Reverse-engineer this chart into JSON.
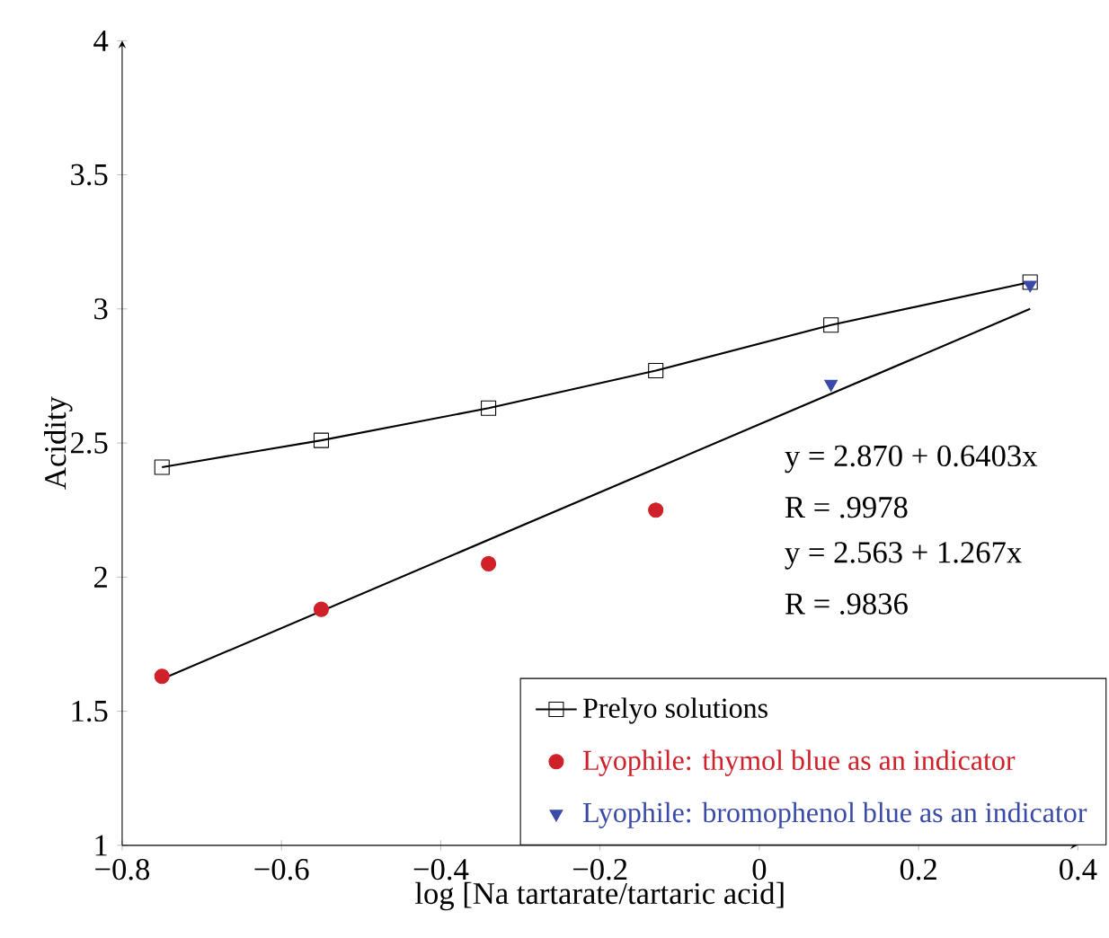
{
  "chart_data": {
    "type": "scatter",
    "xlabel": "log [Na tartarate/tartaric acid]",
    "ylabel": "Acidity",
    "xlim": [
      -0.8,
      0.4
    ],
    "ylim": [
      1,
      4
    ],
    "xticks": [
      {
        "value": -0.8,
        "label": "−0.8"
      },
      {
        "value": -0.6,
        "label": "−0.6"
      },
      {
        "value": -0.4,
        "label": "−0.4"
      },
      {
        "value": -0.2,
        "label": "−0.2"
      },
      0,
      0.2,
      0.4
    ],
    "yticks": [
      1,
      1.5,
      2,
      2.5,
      3,
      3.5,
      4
    ],
    "legend": "bottom right",
    "series": [
      {
        "name": "Prelyo solutions",
        "type": "line",
        "marker": "square",
        "color": "#000000",
        "x": [
          -0.75,
          -0.55,
          -0.34,
          -0.13,
          0.09,
          0.34
        ],
        "values": [
          2.41,
          2.51,
          2.63,
          2.77,
          2.94,
          3.1
        ]
      },
      {
        "name": "Lyophile: thymol blue as an indicator",
        "marker": "circle",
        "color": "#d0202a",
        "x": [
          -0.75,
          -0.55,
          -0.34,
          -0.13
        ],
        "values": [
          1.63,
          1.88,
          2.05,
          2.25
        ]
      },
      {
        "name": "Lyophile: bromophenol blue as an indicator",
        "marker": "triangle",
        "color": "#3a4aa8",
        "x": [
          0.09,
          0.34
        ],
        "values": [
          2.72,
          3.09
        ]
      },
      {
        "type": "line",
        "marker": "none",
        "color": "#000000",
        "x": [
          -0.75,
          0.34
        ],
        "values": [
          1.62,
          3.0
        ]
      }
    ],
    "annotations": [
      "y = 2.870 + 0.6403x",
      "R = .9978",
      "y = 2.563 + 1.267x",
      "R = .9836"
    ]
  }
}
